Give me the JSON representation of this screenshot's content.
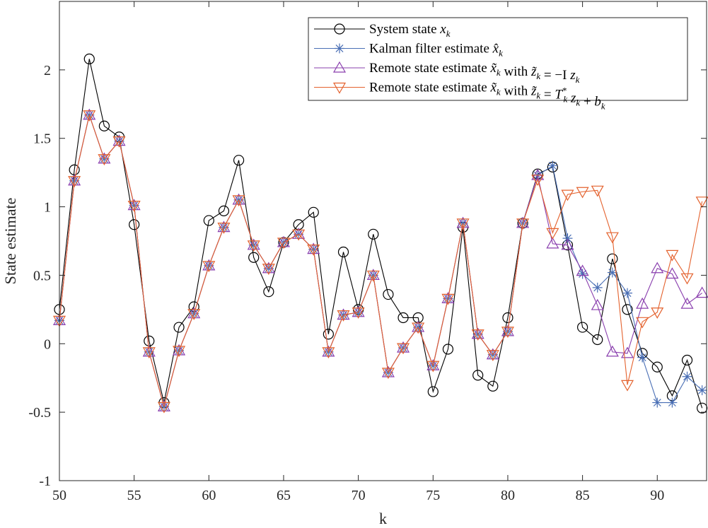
{
  "chart_data": {
    "type": "line",
    "title": "",
    "xlabel": "k",
    "ylabel": "State estimate",
    "xlim": [
      50,
      93.3
    ],
    "ylim": [
      -1,
      2.5
    ],
    "xticks": [
      50,
      55,
      60,
      65,
      70,
      75,
      80,
      85,
      90
    ],
    "yticks": [
      -1,
      -0.5,
      0,
      0.5,
      1,
      1.5,
      2
    ],
    "ytick_labels": [
      "-1",
      "-0.5",
      "0",
      "0.5",
      "1",
      "1.5",
      "2"
    ],
    "grid": false,
    "legend_position": "top-right",
    "x": [
      50,
      51,
      52,
      53,
      54,
      55,
      56,
      57,
      58,
      59,
      60,
      61,
      62,
      63,
      64,
      65,
      66,
      67,
      68,
      69,
      70,
      71,
      72,
      73,
      74,
      75,
      76,
      77,
      78,
      79,
      80,
      81,
      82,
      83,
      84,
      85,
      86,
      87,
      88,
      89,
      90,
      91,
      92,
      93
    ],
    "series": [
      {
        "name": "System state",
        "legend_prefix": "System state ",
        "legend_symbol": "x_k",
        "color": "#000000",
        "marker": "circle",
        "values": [
          0.25,
          1.27,
          2.08,
          1.59,
          1.51,
          0.87,
          0.02,
          -0.43,
          0.12,
          0.27,
          0.9,
          0.97,
          1.34,
          0.63,
          0.38,
          0.74,
          0.87,
          0.96,
          0.07,
          0.67,
          0.25,
          0.8,
          0.36,
          0.19,
          0.19,
          -0.35,
          -0.04,
          0.85,
          -0.23,
          -0.31,
          0.19,
          0.88,
          1.24,
          1.29,
          0.72,
          0.12,
          0.03,
          0.62,
          0.25,
          -0.07,
          -0.17,
          -0.38,
          -0.12,
          -0.47
        ]
      },
      {
        "name": "Kalman filter estimate",
        "legend_prefix": "Kalman filter estimate ",
        "legend_symbol": "x̂_k",
        "color": "#4a6fb5",
        "marker": "asterisk",
        "values": [
          0.17,
          1.19,
          1.67,
          1.35,
          1.48,
          1.01,
          -0.06,
          -0.46,
          -0.05,
          0.22,
          0.57,
          0.85,
          1.05,
          0.72,
          0.55,
          0.74,
          0.8,
          0.69,
          -0.06,
          0.21,
          0.23,
          0.5,
          -0.21,
          -0.03,
          0.12,
          -0.16,
          0.33,
          0.88,
          0.07,
          -0.08,
          0.09,
          0.88,
          1.23,
          1.3,
          0.77,
          0.51,
          0.41,
          0.52,
          0.37,
          -0.1,
          -0.43,
          -0.43,
          -0.24,
          -0.34
        ]
      },
      {
        "name": "Remote state estimate with -Iz",
        "legend_prefix": "Remote state estimate ",
        "legend_symbol": "x̃_k",
        "legend_suffix": " with z̃_k = −I z_k",
        "color": "#8a3fae",
        "marker": "triangle-up",
        "values": [
          0.17,
          1.19,
          1.67,
          1.35,
          1.48,
          1.01,
          -0.06,
          -0.46,
          -0.05,
          0.22,
          0.57,
          0.85,
          1.05,
          0.72,
          0.55,
          0.74,
          0.8,
          0.69,
          -0.06,
          0.21,
          0.23,
          0.5,
          -0.21,
          -0.03,
          0.12,
          -0.16,
          0.33,
          0.88,
          0.07,
          -0.08,
          0.09,
          0.88,
          1.23,
          0.73,
          0.72,
          0.53,
          0.28,
          -0.06,
          -0.07,
          0.29,
          0.55,
          0.51,
          0.29,
          0.37
        ]
      },
      {
        "name": "Remote state estimate with T*z+b",
        "legend_prefix": "Remote state estimate ",
        "legend_symbol": "x̃_k",
        "legend_suffix": " with z̃_k = T*_k z_k + b_k",
        "color": "#e4622e",
        "marker": "triangle-down",
        "values": [
          0.17,
          1.19,
          1.67,
          1.35,
          1.48,
          1.01,
          -0.06,
          -0.46,
          -0.05,
          0.22,
          0.57,
          0.85,
          1.05,
          0.72,
          0.55,
          0.74,
          0.8,
          0.69,
          -0.06,
          0.21,
          0.23,
          0.5,
          -0.21,
          -0.03,
          0.12,
          -0.16,
          0.33,
          0.88,
          0.07,
          -0.08,
          0.09,
          0.88,
          1.2,
          0.81,
          1.09,
          1.11,
          1.12,
          0.78,
          -0.3,
          0.16,
          0.23,
          0.65,
          0.48,
          1.04
        ]
      }
    ]
  }
}
